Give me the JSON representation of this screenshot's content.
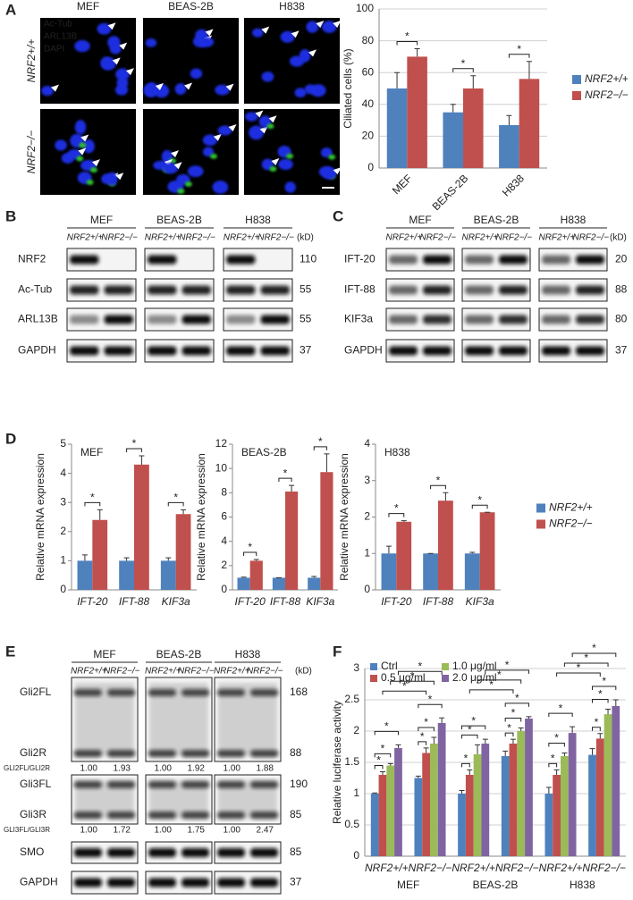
{
  "panel_letters": [
    "A",
    "B",
    "C",
    "D",
    "E",
    "F"
  ],
  "panel_a": {
    "columns": [
      "MEF",
      "BEAS-2B",
      "H838"
    ],
    "rows": [
      "NRF2+/+",
      "NRF2−/−"
    ],
    "stain_legend": [
      "Ac-Tub",
      "ARL13B",
      "DAPI"
    ]
  },
  "panel_b": {
    "columns": [
      "MEF",
      "BEAS-2B",
      "H838"
    ],
    "lanes": [
      "NRF2+/+",
      "NRF2−/−"
    ],
    "unit": "(kD)",
    "rows": [
      {
        "label": "NRF2",
        "kd": "110"
      },
      {
        "label": "Ac-Tub",
        "kd": "55"
      },
      {
        "label": "ARL13B",
        "kd": "55"
      },
      {
        "label": "GAPDH",
        "kd": "37"
      }
    ]
  },
  "panel_c": {
    "columns": [
      "MEF",
      "BEAS-2B",
      "H838"
    ],
    "lanes": [
      "NRF2+/+",
      "NRF2−/−"
    ],
    "unit": "(kD)",
    "rows": [
      {
        "label": "IFT-20",
        "kd": "20"
      },
      {
        "label": "IFT-88",
        "kd": "88"
      },
      {
        "label": "KIF3a",
        "kd": "80"
      },
      {
        "label": "GAPDH",
        "kd": "37"
      }
    ]
  },
  "panel_e": {
    "columns": [
      "MEF",
      "BEAS-2B",
      "H838"
    ],
    "lanes": [
      "NRF2+/+",
      "NRF2−/−"
    ],
    "unit": "(kD)",
    "gli2": {
      "bands": [
        {
          "label": "Gli2FL",
          "kd": "168"
        },
        {
          "label": "Gli2R",
          "kd": "88"
        }
      ],
      "ratio_label": "GLI2FL/GLI2R",
      "ratios": [
        [
          "1.00",
          "1.93"
        ],
        [
          "1.00",
          "1.92"
        ],
        [
          "1.00",
          "1.88"
        ]
      ]
    },
    "gli3": {
      "bands": [
        {
          "label": "Gli3FL",
          "kd": "190"
        },
        {
          "label": "Gli3R",
          "kd": "85"
        }
      ],
      "ratio_label": "GLI3FL/GLI3R",
      "ratios": [
        [
          "1.00",
          "1.72"
        ],
        [
          "1.00",
          "1.75"
        ],
        [
          "1.00",
          "2.47"
        ]
      ]
    },
    "rows": [
      {
        "label": "SMO",
        "kd": "85"
      },
      {
        "label": "GAPDH",
        "kd": "37"
      }
    ]
  },
  "chart_data": [
    {
      "type": "bar",
      "y_label": "Ciliated cells (%)",
      "categories": [
        "MEF",
        "BEAS-2B",
        "H838"
      ],
      "series": [
        {
          "name": "NRF2+/+",
          "color": "#4f81bd",
          "values": [
            50,
            35,
            27
          ],
          "errors": [
            10,
            5,
            6
          ]
        },
        {
          "name": "NRF2−/−",
          "color": "#c0504d",
          "values": [
            70,
            50,
            56
          ],
          "errors": [
            5,
            8,
            11
          ]
        }
      ],
      "ylim": [
        0,
        100
      ],
      "yticks": [
        0,
        20,
        40,
        60,
        80,
        100
      ],
      "grid": true,
      "legend": "right",
      "significance": [
        "*",
        "*",
        "*"
      ]
    },
    {
      "type": "bar",
      "title": "MEF",
      "y_label": "Relative mRNA expression",
      "categories": [
        "IFT-20",
        "IFT-88",
        "KIF3a"
      ],
      "series": [
        {
          "name": "NRF2+/+",
          "color": "#4f81bd",
          "values": [
            1,
            1,
            1
          ],
          "errors": [
            0.2,
            0.1,
            0.1
          ]
        },
        {
          "name": "NRF2−/−",
          "color": "#c0504d",
          "values": [
            2.4,
            4.3,
            2.6
          ],
          "errors": [
            0.35,
            0.3,
            0.15
          ]
        }
      ],
      "ylim": [
        0,
        5
      ],
      "yticks": [
        0,
        1,
        2,
        3,
        4,
        5
      ],
      "grid": false,
      "significance": [
        "*",
        "*",
        "*"
      ]
    },
    {
      "type": "bar",
      "title": "BEAS-2B",
      "y_label": "Relative mRNA expression",
      "categories": [
        "IFT-20",
        "IFT-88",
        "KIF3a"
      ],
      "series": [
        {
          "name": "NRF2+/+",
          "color": "#4f81bd",
          "values": [
            1,
            1,
            1
          ],
          "errors": [
            0.05,
            0,
            0.1
          ]
        },
        {
          "name": "NRF2−/−",
          "color": "#c0504d",
          "values": [
            2.4,
            8.1,
            9.7
          ],
          "errors": [
            0.1,
            0.5,
            1.5
          ]
        }
      ],
      "ylim": [
        0,
        12
      ],
      "yticks": [
        0,
        2,
        4,
        6,
        8,
        10,
        12
      ],
      "grid": false,
      "significance": [
        "*",
        "*",
        "*"
      ]
    },
    {
      "type": "bar",
      "title": "H838",
      "y_label": "Relative mRNA expression",
      "categories": [
        "IFT-20",
        "IFT-88",
        "KIF3a"
      ],
      "series": [
        {
          "name": "NRF2+/+",
          "color": "#4f81bd",
          "values": [
            1,
            1,
            1
          ],
          "errors": [
            0.2,
            0,
            0.03
          ]
        },
        {
          "name": "NRF2−/−",
          "color": "#c0504d",
          "values": [
            1.87,
            2.45,
            2.13
          ],
          "errors": [
            0.03,
            0.22,
            0
          ]
        }
      ],
      "ylim": [
        0,
        4
      ],
      "yticks": [
        0,
        1,
        2,
        3,
        4
      ],
      "grid": false,
      "legend": "right",
      "significance": [
        "*",
        "*",
        "*"
      ]
    },
    {
      "type": "bar",
      "y_label": "Relative luciferase activity",
      "categories": [
        "NRF2+/+",
        "NRF2−/−",
        "NRF2+/+",
        "NRF2−/−",
        "NRF2+/+",
        "NRF2−/−"
      ],
      "groups": [
        "MEF",
        "BEAS-2B",
        "H838"
      ],
      "series": [
        {
          "name": "Ctrl",
          "color": "#4f81bd",
          "values": [
            1.0,
            1.25,
            1.0,
            1.6,
            1.0,
            1.62
          ],
          "errors": [
            0.01,
            0.03,
            0.05,
            0.08,
            0.1,
            0.1
          ]
        },
        {
          "name": "0.5 μg/ml",
          "color": "#c0504d",
          "values": [
            1.3,
            1.65,
            1.3,
            1.8,
            1.3,
            1.88
          ],
          "errors": [
            0.05,
            0.08,
            0.08,
            0.07,
            0.08,
            0.08
          ]
        },
        {
          "name": "1.0 μg/ml",
          "color": "#9bbb59",
          "values": [
            1.45,
            1.8,
            1.63,
            2.0,
            1.6,
            2.27
          ],
          "errors": [
            0.03,
            0.1,
            0.15,
            0.05,
            0.05,
            0.08
          ]
        },
        {
          "name": "2.0 μg/ml",
          "color": "#8064a2",
          "values": [
            1.73,
            2.13,
            1.8,
            2.2,
            1.97,
            2.4
          ],
          "errors": [
            0.05,
            0.08,
            0.07,
            0.03,
            0.1,
            0.1
          ]
        }
      ],
      "ylim": [
        0,
        3
      ],
      "yticks": [
        0,
        0.5,
        1,
        1.5,
        2,
        2.5,
        3
      ],
      "grid": true,
      "legend": "top",
      "significance": [
        [
          "*",
          "*",
          "*"
        ],
        [
          "*",
          "*",
          "*"
        ],
        [
          "*",
          "*",
          "*"
        ],
        [
          "*",
          "*",
          "*"
        ],
        [
          "*",
          "*",
          "*"
        ],
        [
          "*",
          "*",
          "*"
        ]
      ],
      "group_significance": [
        [
          "*",
          "*",
          "*"
        ],
        [
          "*",
          "*",
          "*"
        ],
        [
          "*",
          "*",
          "*"
        ]
      ]
    }
  ]
}
